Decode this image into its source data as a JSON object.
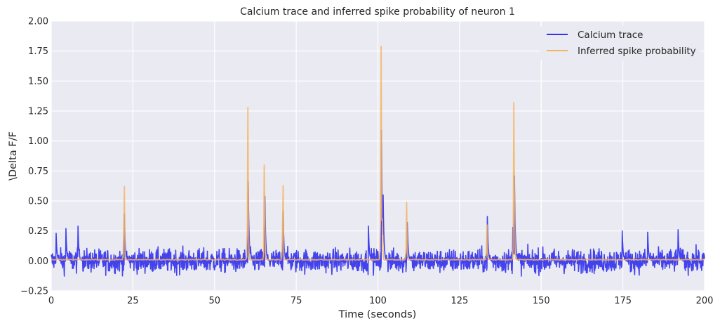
{
  "chart_data": {
    "type": "line",
    "title": "Calcium trace and inferred spike probability of neuron 1",
    "xlabel": "Time (seconds)",
    "ylabel": "\\Delta F/F",
    "xlim": [
      0,
      200
    ],
    "ylim": [
      -0.25,
      2.0
    ],
    "xticks": [
      0,
      25,
      50,
      75,
      100,
      125,
      150,
      175,
      200
    ],
    "xtick_labels": [
      "0",
      "25",
      "50",
      "75",
      "100",
      "125",
      "150",
      "175",
      "200"
    ],
    "yticks": [
      -0.25,
      0.0,
      0.25,
      0.5,
      0.75,
      1.0,
      1.25,
      1.5,
      1.75,
      2.0
    ],
    "ytick_labels": [
      "−0.25",
      "0.00",
      "0.25",
      "0.50",
      "0.75",
      "1.00",
      "1.25",
      "1.50",
      "1.75",
      "2.00"
    ],
    "grid": true,
    "legend_position": "top-right",
    "background_color": "#eaeaf2",
    "series": [
      {
        "name": "Calcium trace",
        "color": "#3333ee",
        "baseline": 0.0,
        "noise_amplitude": 0.08,
        "sample_count": 2000,
        "peaks": [
          {
            "t": 1.5,
            "value": 0.23
          },
          {
            "t": 4.5,
            "value": 0.27
          },
          {
            "t": 8.2,
            "value": 0.29
          },
          {
            "t": 22.4,
            "value": 0.39
          },
          {
            "t": 60.3,
            "value": 0.66
          },
          {
            "t": 65.4,
            "value": 0.54
          },
          {
            "t": 71.0,
            "value": 0.41
          },
          {
            "t": 97.1,
            "value": 0.29
          },
          {
            "t": 101.1,
            "value": 1.09
          },
          {
            "t": 101.6,
            "value": 0.55
          },
          {
            "t": 109.0,
            "value": 0.32
          },
          {
            "t": 133.5,
            "value": 0.37
          },
          {
            "t": 141.3,
            "value": 0.28
          },
          {
            "t": 141.8,
            "value": 0.71
          },
          {
            "t": 174.8,
            "value": 0.25
          },
          {
            "t": 182.6,
            "value": 0.24
          },
          {
            "t": 191.9,
            "value": 0.26
          }
        ]
      },
      {
        "name": "Inferred spike probability",
        "color": "#f4b35e",
        "peaks": [
          {
            "t": 22.3,
            "value": 0.62
          },
          {
            "t": 60.2,
            "value": 1.28
          },
          {
            "t": 65.3,
            "value": 0.8
          },
          {
            "t": 70.9,
            "value": 0.63
          },
          {
            "t": 101.0,
            "value": 1.79
          },
          {
            "t": 101.4,
            "value": 0.35
          },
          {
            "t": 108.8,
            "value": 0.49
          },
          {
            "t": 133.4,
            "value": 0.3
          },
          {
            "t": 141.7,
            "value": 1.32
          }
        ]
      }
    ]
  }
}
